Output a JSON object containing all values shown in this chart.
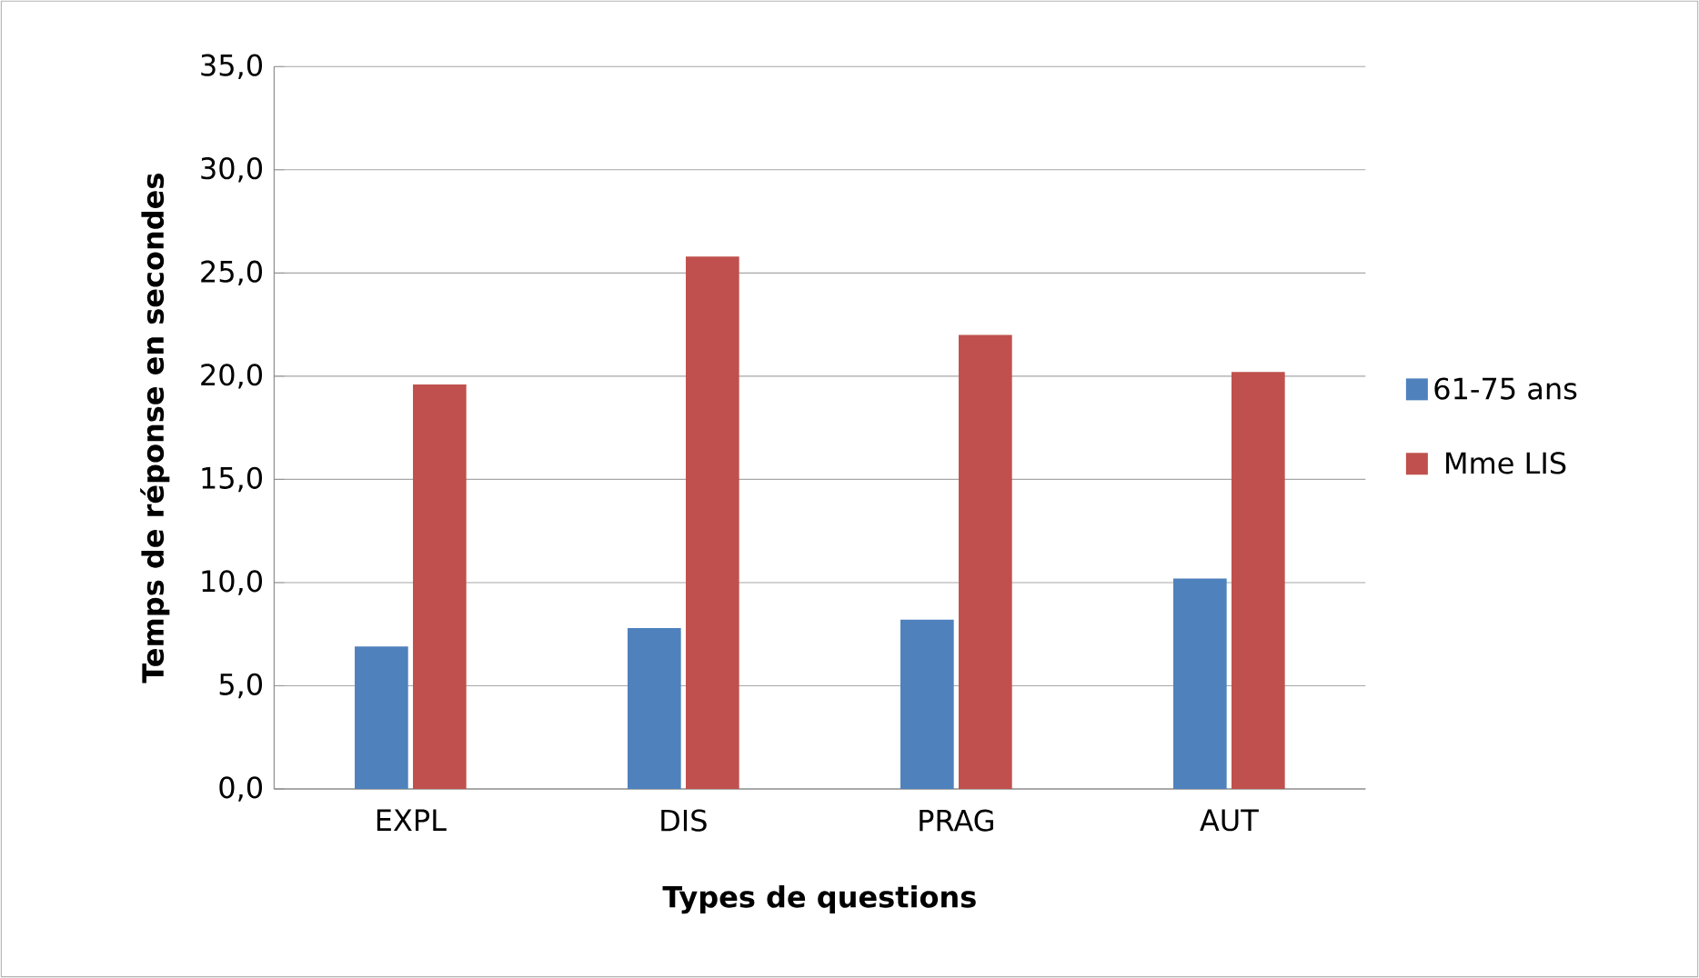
{
  "chart_data": {
    "type": "bar",
    "xlabel": "Types de questions",
    "ylabel": "Temps de réponse en secondes",
    "categories": [
      "EXPL",
      "DIS",
      "PRAG",
      "AUT"
    ],
    "series": [
      {
        "name": "61-75 ans",
        "color": "#4f81bd",
        "values": [
          6.9,
          7.8,
          8.2,
          10.2
        ]
      },
      {
        "name": "Mme LIS",
        "color": "#c0504d",
        "values": [
          19.6,
          25.8,
          22.0,
          20.2
        ]
      }
    ],
    "ylim": [
      0,
      35
    ],
    "yticks": [
      {
        "value": 0,
        "label": "0,0"
      },
      {
        "value": 5,
        "label": "5,0"
      },
      {
        "value": 10,
        "label": "10,0"
      },
      {
        "value": 15,
        "label": "15,0"
      },
      {
        "value": 20,
        "label": "20,0"
      },
      {
        "value": 25,
        "label": "25,0"
      },
      {
        "value": 30,
        "label": "30,0"
      },
      {
        "value": 35,
        "label": "35,0"
      }
    ],
    "grid": "y",
    "legend": "right"
  }
}
